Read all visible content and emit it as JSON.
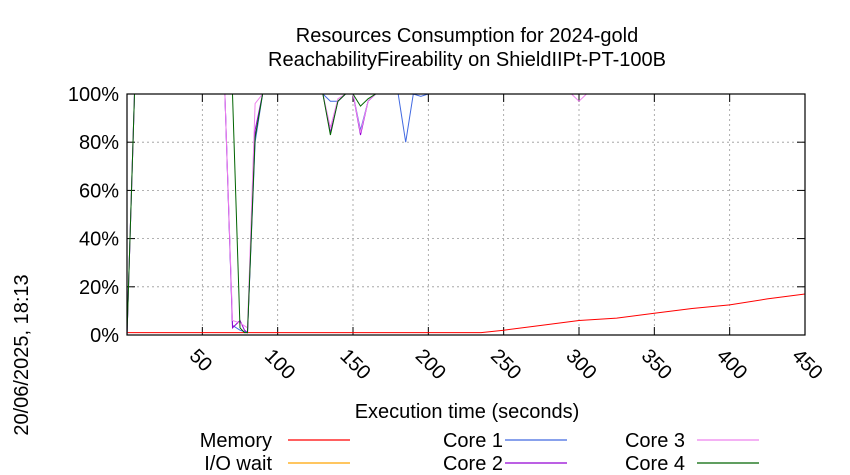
{
  "chart_data": {
    "type": "line",
    "title_line1": "Resources Consumption for 2024-gold",
    "title_line2": "ReachabilityFireability on ShieldIIPt-PT-100B",
    "xlabel": "Execution time (seconds)",
    "side_label": "20/06/2025, 18:13",
    "xlim": [
      0,
      450
    ],
    "ylim": [
      0,
      100
    ],
    "x_ticks": [
      50,
      100,
      150,
      200,
      250,
      300,
      350,
      400,
      450
    ],
    "y_ticks": [
      {
        "value": 0,
        "label": "0%"
      },
      {
        "value": 20,
        "label": "20%"
      },
      {
        "value": 40,
        "label": "40%"
      },
      {
        "value": 60,
        "label": "60%"
      },
      {
        "value": 80,
        "label": "80%"
      },
      {
        "value": 100,
        "label": "100%"
      }
    ],
    "grid": true,
    "legend_position": "bottom",
    "series": [
      {
        "name": "Memory",
        "color": "#ff0000",
        "points": [
          [
            0,
            1
          ],
          [
            50,
            1
          ],
          [
            100,
            1
          ],
          [
            150,
            1
          ],
          [
            200,
            1
          ],
          [
            235,
            1
          ],
          [
            250,
            2
          ],
          [
            275,
            4
          ],
          [
            300,
            6
          ],
          [
            325,
            7
          ],
          [
            350,
            9
          ],
          [
            375,
            11
          ],
          [
            400,
            12.5
          ],
          [
            425,
            15
          ],
          [
            450,
            17
          ]
        ]
      },
      {
        "name": "I/O wait",
        "color": "#ffa500",
        "points": [
          [
            0,
            0
          ],
          [
            450,
            0
          ]
        ]
      },
      {
        "name": "Core 1",
        "color": "#4169e1",
        "points": [
          [
            0,
            0
          ],
          [
            5,
            100
          ],
          [
            65,
            100
          ],
          [
            70,
            4
          ],
          [
            75,
            2
          ],
          [
            80,
            1
          ],
          [
            85,
            80
          ],
          [
            90,
            100
          ],
          [
            130,
            100
          ],
          [
            135,
            97
          ],
          [
            140,
            97
          ],
          [
            145,
            100
          ],
          [
            150,
            100
          ],
          [
            155,
            85
          ],
          [
            160,
            97
          ],
          [
            165,
            100
          ],
          [
            180,
            100
          ],
          [
            185,
            80
          ],
          [
            190,
            100
          ],
          [
            195,
            99
          ],
          [
            200,
            100
          ],
          [
            450,
            100
          ]
        ]
      },
      {
        "name": "Core 2",
        "color": "#9400d3",
        "points": [
          [
            0,
            0
          ],
          [
            5,
            100
          ],
          [
            65,
            100
          ],
          [
            70,
            3
          ],
          [
            75,
            6
          ],
          [
            78,
            2
          ],
          [
            80,
            1
          ],
          [
            85,
            85
          ],
          [
            90,
            100
          ],
          [
            130,
            100
          ],
          [
            135,
            84
          ],
          [
            140,
            97
          ],
          [
            145,
            100
          ],
          [
            150,
            100
          ],
          [
            155,
            83
          ],
          [
            160,
            97
          ],
          [
            165,
            100
          ],
          [
            450,
            100
          ]
        ]
      },
      {
        "name": "Core 3",
        "color": "#ee82ee",
        "points": [
          [
            0,
            0
          ],
          [
            5,
            100
          ],
          [
            65,
            100
          ],
          [
            70,
            6
          ],
          [
            75,
            5
          ],
          [
            80,
            3
          ],
          [
            85,
            96
          ],
          [
            90,
            100
          ],
          [
            130,
            100
          ],
          [
            135,
            86
          ],
          [
            140,
            98
          ],
          [
            145,
            100
          ],
          [
            150,
            100
          ],
          [
            155,
            84
          ],
          [
            160,
            97
          ],
          [
            165,
            100
          ],
          [
            295,
            100
          ],
          [
            300,
            97
          ],
          [
            305,
            100
          ],
          [
            450,
            100
          ]
        ]
      },
      {
        "name": "Core 4",
        "color": "#006400",
        "points": [
          [
            0,
            0
          ],
          [
            5,
            100
          ],
          [
            70,
            100
          ],
          [
            75,
            3
          ],
          [
            78,
            1
          ],
          [
            80,
            1
          ],
          [
            85,
            82
          ],
          [
            90,
            100
          ],
          [
            130,
            100
          ],
          [
            135,
            83
          ],
          [
            140,
            97
          ],
          [
            145,
            100
          ],
          [
            150,
            100
          ],
          [
            155,
            95
          ],
          [
            160,
            98
          ],
          [
            165,
            100
          ],
          [
            450,
            100
          ]
        ]
      }
    ]
  }
}
